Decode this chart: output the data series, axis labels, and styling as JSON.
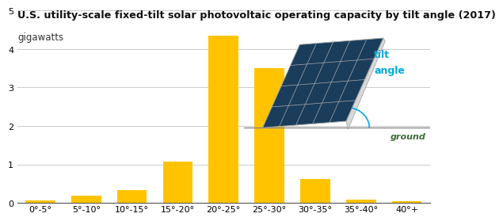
{
  "title": "U.S. utility-scale fixed-tilt solar photovoltaic operating capacity by tilt angle (2017)",
  "ylabel": "gigawatts",
  "categories": [
    "0°-5°",
    "5°-10°",
    "10°-15°",
    "15°-20°",
    "20°-25°",
    "25°-30°",
    "30°-35°",
    "35°-40°",
    "40°+"
  ],
  "values": [
    0.07,
    0.18,
    0.33,
    1.08,
    4.35,
    3.5,
    0.63,
    0.09,
    0.05
  ],
  "bar_color": "#FFC300",
  "ylim": [
    0,
    5
  ],
  "yticks": [
    0,
    1,
    2,
    3,
    4,
    5
  ],
  "bg_color": "#ffffff",
  "grid_color": "#cccccc",
  "title_fontsize": 9.2,
  "ylabel_fontsize": 8.5,
  "tick_fontsize": 8,
  "panel_face": "#1a3d5c",
  "panel_edge": "#aaaaaa",
  "panel_side": "#d8d8d8",
  "tilt_label_color": "#00aadd",
  "ground_label_color": "#3d6b3a"
}
